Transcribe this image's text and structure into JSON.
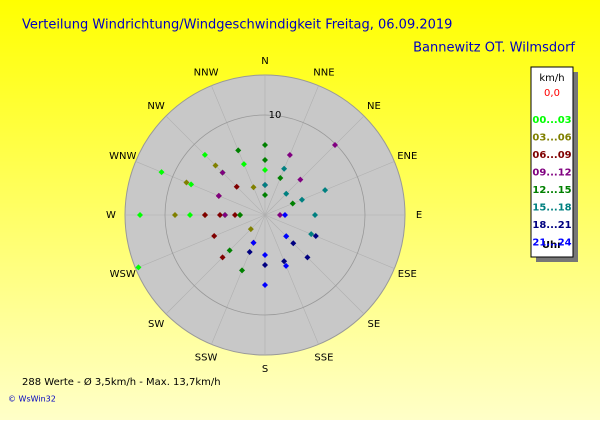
{
  "chart_data": {
    "type": "polar-scatter",
    "title": "Verteilung Windrichtung/Windgeschwindigkeit  Freitag, 06.09.2019",
    "subtitle": "Bannewitz OT. Wilmsdorf",
    "footer": "288 Werte   -   Ø 3,5km/h   -   Max. 13,7km/h",
    "credit": "© WsWin32",
    "legend_title": "km/h",
    "calm_label": "0,0",
    "calm_color": "#ff0000",
    "legend_unit": "Uhr",
    "categories": [
      "N",
      "NNE",
      "NE",
      "ENE",
      "E",
      "ESE",
      "SE",
      "SSE",
      "S",
      "SSW",
      "SW",
      "WSW",
      "W",
      "WNW",
      "NW",
      "NNW"
    ],
    "xlim": [
      0,
      360
    ],
    "ylim": [
      0,
      14
    ],
    "yticks": [
      10
    ],
    "series": [
      {
        "name": "00...03",
        "color": "#00ff00",
        "x": [
          270,
          270,
          292.5,
          292.5,
          315,
          315,
          337.5,
          247.5,
          0,
          270
        ],
        "values": [
          12.5,
          7.5,
          11.2,
          8.0,
          8.5,
          6.0,
          5.5,
          13.7,
          4.5,
          4.0
        ]
      },
      {
        "name": "03...06",
        "color": "#808000",
        "x": [
          270,
          292.5,
          315,
          270,
          225,
          337.5,
          270
        ],
        "values": [
          9.0,
          8.5,
          7.0,
          6.0,
          2.0,
          3.0,
          2.5
        ]
      },
      {
        "name": "06...09",
        "color": "#800000",
        "x": [
          270,
          270,
          247.5,
          225,
          292.5,
          270,
          202.5,
          315
        ],
        "values": [
          6.0,
          4.5,
          5.5,
          6.0,
          5.0,
          3.0,
          3.0,
          4.0
        ]
      },
      {
        "name": "09...12",
        "color": "#800080",
        "x": [
          45,
          22.5,
          315,
          292.5,
          0,
          90,
          270,
          45
        ],
        "values": [
          9.9,
          6.5,
          6.0,
          5.0,
          3.0,
          1.5,
          4.0,
          5.0
        ]
      },
      {
        "name": "12...15",
        "color": "#008000",
        "x": [
          0,
          0,
          337.5,
          22.5,
          67.5,
          270,
          225,
          202.5,
          0
        ],
        "values": [
          7.0,
          5.5,
          7.0,
          4.0,
          3.0,
          2.5,
          5.0,
          6.0,
          2.0
        ]
      },
      {
        "name": "15...18",
        "color": "#008080",
        "x": [
          67.5,
          90,
          112.5,
          45,
          135,
          67.5,
          0,
          22.5
        ],
        "values": [
          6.5,
          5.0,
          5.0,
          3.0,
          3.0,
          4.0,
          3.0,
          5.0
        ]
      },
      {
        "name": "18...21",
        "color": "#000080",
        "x": [
          157.5,
          135,
          180,
          112.5,
          202.5,
          135
        ],
        "values": [
          5.0,
          6.0,
          5.0,
          5.5,
          4.0,
          4.0
        ]
      },
      {
        "name": "21...24",
        "color": "#0000ff",
        "x": [
          180,
          157.5,
          135,
          180,
          202.5,
          90
        ],
        "values": [
          7.0,
          5.5,
          3.0,
          4.0,
          3.0,
          2.0
        ]
      }
    ]
  }
}
